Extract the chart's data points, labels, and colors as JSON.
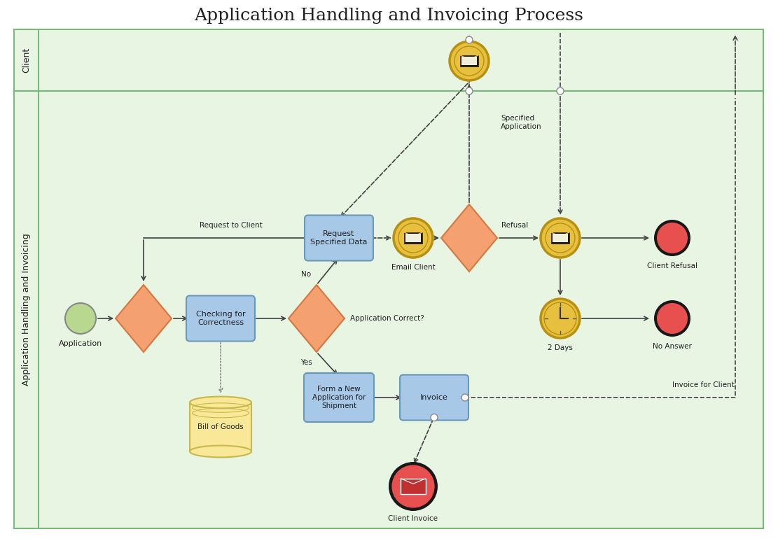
{
  "title": "Application Handling and Invoicing Process",
  "title_fontsize": 18,
  "bg_color": "#ffffff",
  "lane1_label": "Client",
  "lane2_label": "Application Handling and Invoicing",
  "lane_fill": "#e8f5e3",
  "lane_border": "#7cb87c",
  "node_blue_fill": "#a8c8e8",
  "node_blue_border": "#6898b8",
  "node_diamond_fill": "#f4a070",
  "node_diamond_border": "#d47840",
  "node_green_fill": "#b8d890",
  "node_green_border": "#88a860",
  "node_gold_fill": "#e8c040",
  "node_gold_border": "#b89010",
  "node_red_fill": "#e85050",
  "node_red_border": "#181818",
  "node_yellow_fill": "#f8e898",
  "node_yellow_border": "#c8b848",
  "arrow_color": "#404040",
  "text_color": "#202020"
}
